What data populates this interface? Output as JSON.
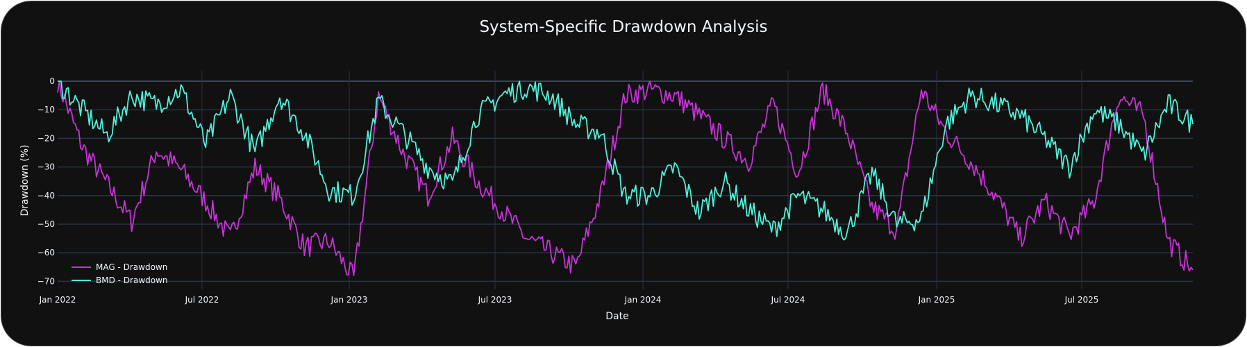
{
  "title": "System-Specific Drawdown Analysis",
  "colors": {
    "background": "#111111",
    "grid": "#283442",
    "text": "#f2f5fa",
    "mag": "#c832d8",
    "bmd": "#50f0d8"
  },
  "chart_data": {
    "type": "line",
    "title": "System-Specific Drawdown Analysis",
    "xlabel": "Date",
    "ylabel": "Drawdown (%)",
    "ylim": [
      -72,
      0
    ],
    "yticks": [
      0,
      -10,
      -20,
      -30,
      -40,
      -50,
      -60,
      -70
    ],
    "ytick_labels": [
      "0",
      "−10",
      "−20",
      "−30",
      "−40",
      "−50",
      "−60",
      "−70"
    ],
    "xticks": [
      "Jan 2022",
      "Jul 2022",
      "Jan 2023",
      "Jul 2023",
      "Jan 2024",
      "Jul 2024",
      "Jan 2025",
      "Jul 2025"
    ],
    "xrange": [
      "2022-01-01",
      "2025-11-30"
    ],
    "grid": true,
    "legend_position": "bottom-left inside",
    "x": [
      "2022-01",
      "2022-02",
      "2022-03",
      "2022-04",
      "2022-05",
      "2022-06",
      "2022-07",
      "2022-08",
      "2022-09",
      "2022-10",
      "2022-11",
      "2022-12",
      "2023-01",
      "2023-02",
      "2023-03",
      "2023-04",
      "2023-05",
      "2023-06",
      "2023-07",
      "2023-08",
      "2023-09",
      "2023-10",
      "2023-11",
      "2023-12",
      "2024-01",
      "2024-02",
      "2024-03",
      "2024-04",
      "2024-05",
      "2024-06",
      "2024-07",
      "2024-08",
      "2024-09",
      "2024-10",
      "2024-11",
      "2024-12",
      "2025-01",
      "2025-02",
      "2025-03",
      "2025-04",
      "2025-05",
      "2025-06",
      "2025-07",
      "2025-08",
      "2025-09",
      "2025-10",
      "2025-11"
    ],
    "series": [
      {
        "name": "MAG - Drawdown",
        "color": "#c832d8",
        "values": [
          0,
          -23,
          -36,
          -49,
          -24,
          -31,
          -42,
          -55,
          -30,
          -41,
          -58,
          -56,
          -69,
          -5,
          -25,
          -40,
          -20,
          -35,
          -45,
          -55,
          -60,
          -65,
          -40,
          -5,
          -3,
          -5,
          -12,
          -20,
          -28,
          -8,
          -32,
          -3,
          -18,
          -44,
          -52,
          -3,
          -18,
          -28,
          -40,
          -55,
          -42,
          -54,
          -42,
          -5,
          -12,
          -56,
          -66
        ]
      },
      {
        "name": "BMD - Drawdown",
        "color": "#50f0d8",
        "values": [
          0,
          -10,
          -19,
          -5,
          -8,
          -3,
          -22,
          -5,
          -25,
          -5,
          -18,
          -38,
          -40,
          -7,
          -18,
          -30,
          -36,
          -12,
          -5,
          -2,
          -5,
          -15,
          -18,
          -40,
          -40,
          -30,
          -46,
          -35,
          -45,
          -52,
          -40,
          -45,
          -53,
          -32,
          -50,
          -48,
          -15,
          -5,
          -8,
          -12,
          -20,
          -30,
          -10,
          -15,
          -26,
          -8,
          -15
        ]
      }
    ]
  },
  "legend": {
    "items": [
      {
        "label": "MAG - Drawdown"
      },
      {
        "label": "BMD - Drawdown"
      }
    ]
  },
  "axes": {
    "x_title": "Date",
    "y_title": "Drawdown (%)"
  }
}
